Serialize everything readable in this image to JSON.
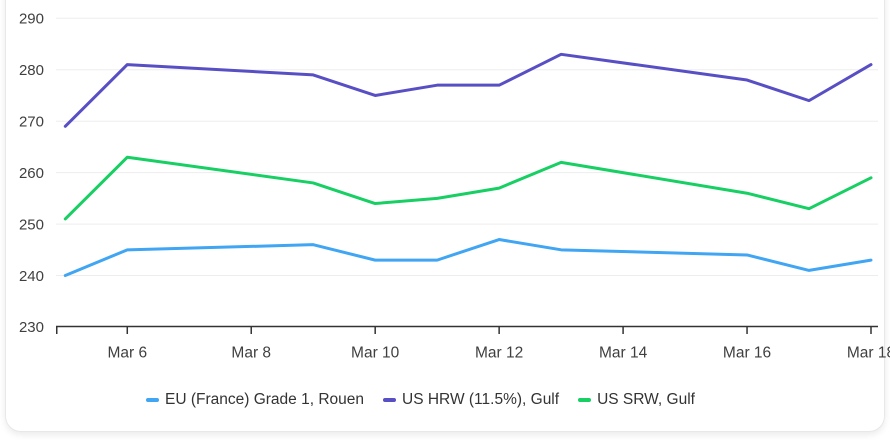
{
  "chart_data": {
    "type": "line",
    "title": "",
    "xlabel": "",
    "ylabel": "",
    "x_unit": "date (March, weekdays only; weekend gaps are interpolated)",
    "x": [
      "Mar 5",
      "Mar 6",
      "Mar 9",
      "Mar 10",
      "Mar 11",
      "Mar 12",
      "Mar 13",
      "Mar 16",
      "Mar 17",
      "Mar 18"
    ],
    "x_day_numbers": [
      5,
      6,
      9,
      10,
      11,
      12,
      13,
      16,
      17,
      18
    ],
    "x_tick_days": [
      6,
      8,
      10,
      12,
      14,
      16,
      18
    ],
    "x_tick_labels": [
      "Mar 6",
      "Mar 8",
      "Mar 10",
      "Mar 12",
      "Mar 14",
      "Mar 16",
      "Mar 18"
    ],
    "y_ticks": [
      230,
      240,
      250,
      260,
      270,
      280,
      290
    ],
    "ylim": [
      230,
      290
    ],
    "xlim_days": [
      5,
      18
    ],
    "grid": "horizontal",
    "legend_position": "bottom",
    "series": [
      {
        "name": "EU (France) Grade 1, Rouen",
        "color": "#40a5f3",
        "values": [
          240,
          245,
          246,
          243,
          243,
          247,
          245,
          244,
          241,
          243
        ]
      },
      {
        "name": "US HRW (11.5%), Gulf",
        "color": "#584fc4",
        "values": [
          269,
          281,
          279,
          275,
          277,
          277,
          283,
          278,
          274,
          281
        ]
      },
      {
        "name": "US SRW, Gulf",
        "color": "#17cf63",
        "values": [
          251,
          263,
          258,
          254,
          255,
          257,
          262,
          256,
          253,
          259
        ]
      }
    ],
    "colors": {
      "grid": "#ededed",
      "axis": "#333333",
      "tick_text": "#3f3f3f",
      "legend_text": "#333333",
      "background": "#ffffff"
    }
  }
}
